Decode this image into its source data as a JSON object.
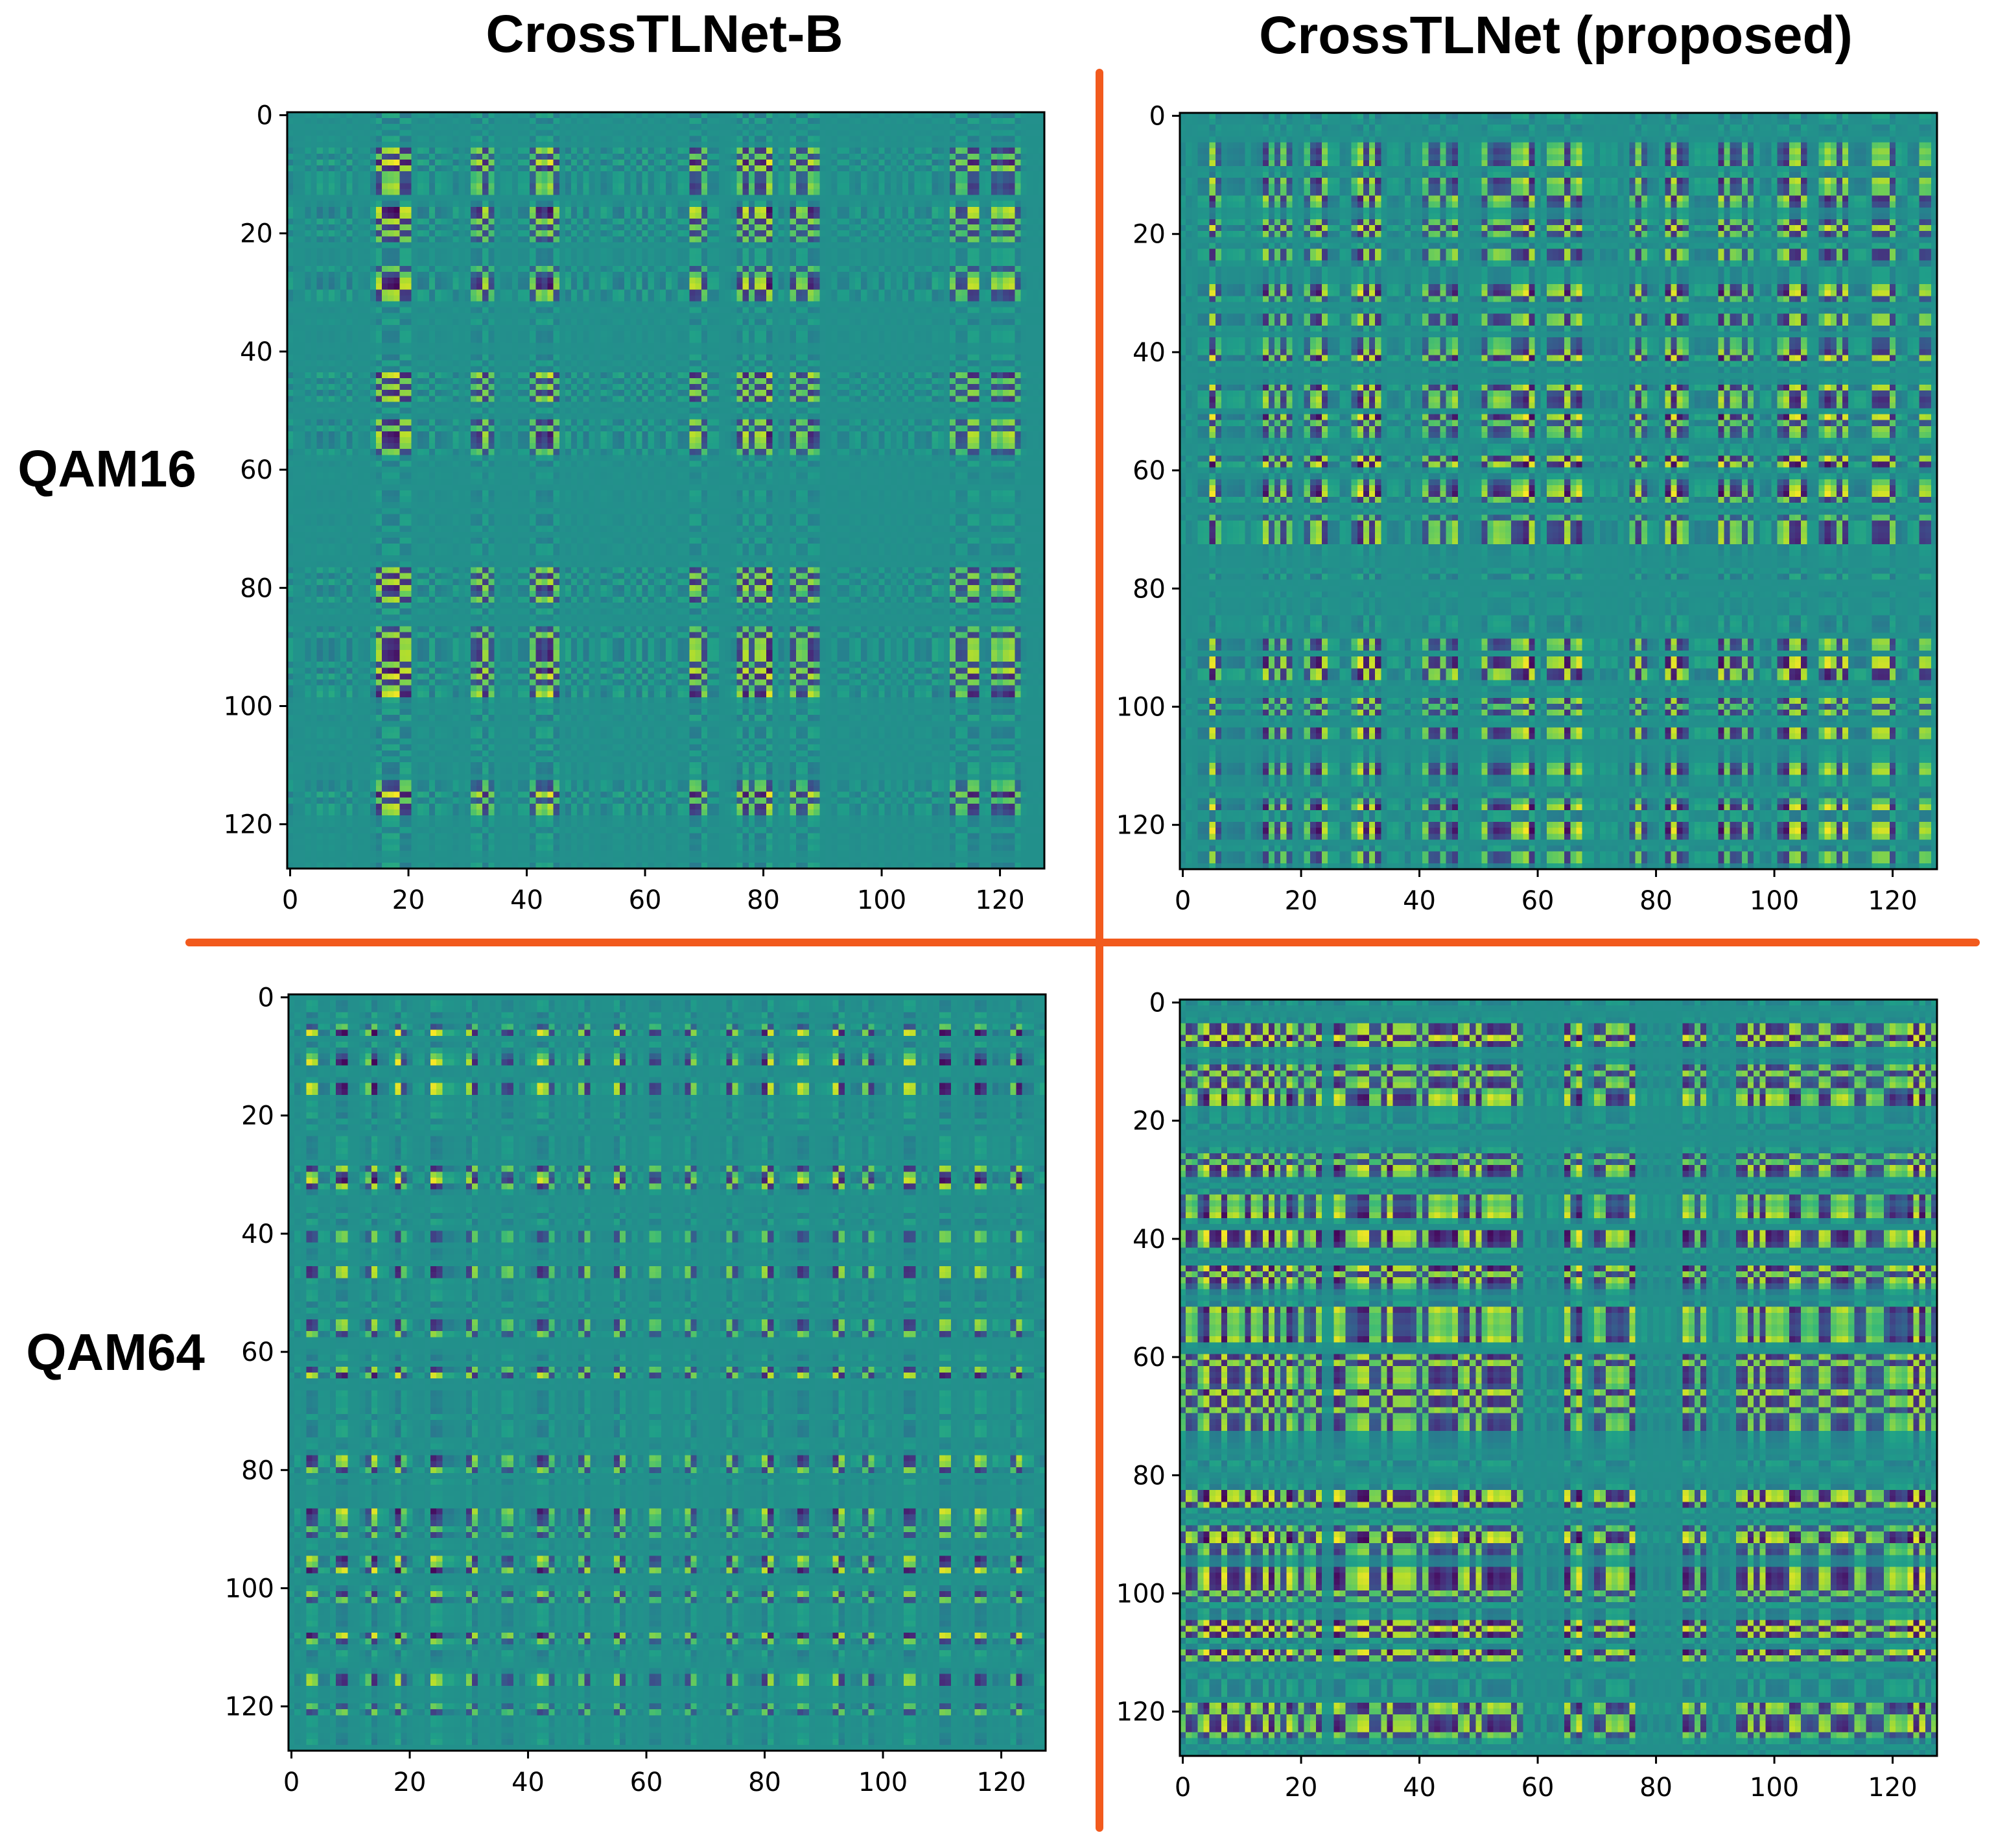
{
  "chart_data": {
    "type": "heatmap",
    "grid_size": [
      128,
      128
    ],
    "column_titles": [
      "CrossTLNet-B",
      "CrossTLNet (proposed)"
    ],
    "row_labels": [
      "QAM16",
      "QAM64"
    ],
    "x_ticks": [
      0,
      20,
      40,
      60,
      80,
      100,
      120
    ],
    "y_ticks": [
      0,
      20,
      40,
      60,
      80,
      100,
      120
    ],
    "xlim": [
      -0.5,
      127.5
    ],
    "ylim": [
      127.5,
      -0.5
    ],
    "colormap": "viridis",
    "panels": [
      {
        "row": "QAM16",
        "model": "CrossTLNet-B",
        "strong_columns": [
          15,
          16,
          17,
          18,
          19,
          20,
          31,
          32,
          33,
          34,
          41,
          42,
          43,
          44,
          45,
          68,
          69,
          70,
          76,
          77,
          78,
          79,
          80,
          81,
          85,
          86,
          87,
          88,
          89,
          112,
          113,
          114,
          115,
          116,
          119,
          120,
          121,
          122,
          123
        ],
        "strong_rows": [
          6,
          7,
          8,
          9,
          10,
          11,
          12,
          13,
          16,
          17,
          18,
          19,
          20,
          21,
          26,
          27,
          28,
          29,
          30,
          31,
          44,
          45,
          46,
          47,
          48,
          52,
          53,
          54,
          55,
          56,
          57,
          77,
          78,
          79,
          80,
          81,
          82,
          87,
          88,
          89,
          90,
          91,
          92,
          93,
          94,
          95,
          96,
          97,
          98,
          113,
          114,
          115,
          116,
          117,
          118
        ]
      },
      {
        "row": "QAM16",
        "model": "CrossTLNet (proposed)",
        "strong_columns": [
          5,
          6,
          14,
          15,
          16,
          17,
          18,
          21,
          22,
          23,
          24,
          29,
          30,
          31,
          32,
          33,
          41,
          42,
          43,
          44,
          45,
          46,
          51,
          52,
          53,
          54,
          55,
          56,
          57,
          58,
          59,
          62,
          63,
          64,
          65,
          66,
          67,
          76,
          77,
          78,
          82,
          83,
          84,
          85,
          91,
          92,
          93,
          94,
          95,
          96,
          101,
          102,
          103,
          104,
          105,
          108,
          109,
          110,
          111,
          112,
          117,
          118,
          119,
          120,
          125,
          126
        ],
        "strong_rows": [
          5,
          6,
          7,
          8,
          11,
          12,
          13,
          14,
          15,
          18,
          19,
          20,
          23,
          24,
          29,
          30,
          31,
          34,
          35,
          38,
          39,
          40,
          41,
          46,
          47,
          48,
          49,
          51,
          52,
          53,
          54,
          58,
          59,
          62,
          63,
          64,
          65,
          68,
          69,
          70,
          71,
          72,
          89,
          90,
          92,
          93,
          94,
          95,
          99,
          100,
          101,
          104,
          105,
          110,
          111,
          116,
          117,
          120,
          121,
          122,
          125,
          126
        ]
      },
      {
        "row": "QAM64",
        "model": "CrossTLNet-B",
        "strong_columns": [
          3,
          4,
          8,
          9,
          13,
          14,
          18,
          19,
          24,
          25,
          30,
          31,
          36,
          37,
          42,
          43,
          44,
          49,
          50,
          55,
          56,
          61,
          62,
          67,
          68,
          74,
          75,
          80,
          81,
          86,
          87,
          92,
          93,
          97,
          98,
          104,
          105,
          110,
          111,
          116,
          117,
          122,
          123
        ],
        "strong_rows": [
          5,
          6,
          10,
          11,
          15,
          16,
          29,
          30,
          31,
          32,
          40,
          41,
          46,
          47,
          55,
          56,
          57,
          63,
          64,
          78,
          79,
          80,
          87,
          88,
          89,
          90,
          91,
          95,
          96,
          97,
          101,
          102,
          108,
          109,
          115,
          116,
          120,
          121
        ]
      },
      {
        "row": "QAM64",
        "model": "CrossTLNet (proposed)",
        "strong_columns": [
          0,
          1,
          2,
          3,
          4,
          5,
          6,
          7,
          8,
          9,
          10,
          11,
          12,
          13,
          14,
          15,
          16,
          17,
          18,
          19,
          20,
          21,
          22,
          23,
          26,
          27,
          28,
          29,
          30,
          31,
          32,
          33,
          34,
          35,
          36,
          37,
          38,
          39,
          40,
          41,
          42,
          43,
          44,
          45,
          46,
          47,
          48,
          49,
          50,
          51,
          52,
          53,
          54,
          55,
          56,
          57,
          65,
          66,
          67,
          70,
          71,
          72,
          73,
          74,
          75,
          76,
          85,
          86,
          87,
          88,
          94,
          95,
          96,
          97,
          98,
          99,
          100,
          101,
          102,
          103,
          104,
          105,
          106,
          107,
          108,
          109,
          110,
          111,
          112,
          113,
          114,
          115,
          116,
          117,
          118,
          119,
          120,
          121,
          122,
          123,
          124,
          125,
          126,
          127
        ],
        "strong_rows": [
          4,
          5,
          6,
          7,
          11,
          12,
          13,
          14,
          15,
          16,
          17,
          26,
          27,
          28,
          29,
          33,
          34,
          35,
          36,
          39,
          40,
          41,
          45,
          46,
          47,
          48,
          52,
          53,
          54,
          55,
          56,
          57,
          60,
          61,
          62,
          63,
          64,
          65,
          66,
          67,
          68,
          69,
          70,
          71,
          72,
          83,
          84,
          85,
          89,
          90,
          91,
          92,
          93,
          96,
          97,
          98,
          99,
          100,
          101,
          105,
          106,
          107,
          110,
          111,
          119,
          120,
          121,
          122,
          123,
          124
        ]
      }
    ]
  }
}
